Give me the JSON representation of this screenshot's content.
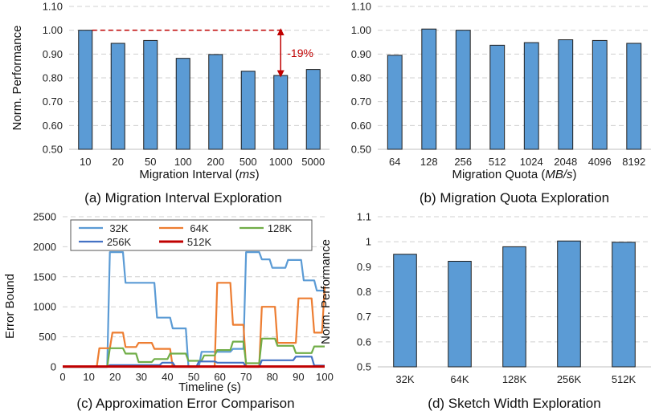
{
  "colors": {
    "bar_fill": "#5b9bd5",
    "bar_stroke": "#1f1f1f",
    "grid": "#d0d0d0",
    "axis": "#333333",
    "annotation": "#c00000"
  },
  "chart_data": [
    {
      "id": "a",
      "type": "bar",
      "caption": "(a) Migration Interval Exploration",
      "xlabel": "Migration Interval (",
      "xlabel_unit": "ms",
      "xlabel_end": ")",
      "ylabel": "Norm. Performance",
      "categories": [
        "10",
        "20",
        "50",
        "100",
        "200",
        "500",
        "1000",
        "5000"
      ],
      "values": [
        1.0,
        0.945,
        0.957,
        0.882,
        0.898,
        0.828,
        0.81,
        0.835
      ],
      "ylim": [
        0.5,
        1.1
      ],
      "yticks": [
        "0.50",
        "0.60",
        "0.70",
        "0.80",
        "0.90",
        "1.00",
        "1.10"
      ],
      "annotation": {
        "text": "-19%",
        "from_value": 1.0,
        "to_value": 0.81
      }
    },
    {
      "id": "b",
      "type": "bar",
      "caption": "(b) Migration Quota Exploration",
      "xlabel": "Migration Quota (",
      "xlabel_unit": "MB/s",
      "xlabel_end": ")",
      "ylabel": "",
      "categories": [
        "64",
        "128",
        "256",
        "512",
        "1024",
        "2048",
        "4096",
        "8192"
      ],
      "values": [
        0.895,
        1.005,
        1.0,
        0.937,
        0.948,
        0.96,
        0.957,
        0.945
      ],
      "ylim": [
        0.5,
        1.1
      ],
      "yticks": [
        "0.50",
        "0.60",
        "0.70",
        "0.80",
        "0.90",
        "1.00",
        "1.10"
      ]
    },
    {
      "id": "c",
      "type": "line",
      "caption": "(c) Approximation Error Comparison",
      "xlabel": "Timeline (s)",
      "ylabel": "Error Bound",
      "xlim": [
        0,
        100
      ],
      "ylim": [
        0,
        2500
      ],
      "xticks": [
        "0",
        "10",
        "20",
        "30",
        "40",
        "50",
        "60",
        "70",
        "80",
        "90",
        "100"
      ],
      "yticks": [
        "0",
        "500",
        "1000",
        "1500",
        "2000",
        "2500"
      ],
      "series": [
        {
          "name": "32K",
          "color": "#5b9bd5",
          "x": [
            0,
            17,
            18,
            23,
            24,
            29,
            30,
            35,
            36,
            41,
            42,
            47,
            48,
            52,
            53,
            58,
            59,
            64,
            65,
            69,
            70,
            75,
            76,
            79,
            80,
            85,
            86,
            91,
            92,
            96,
            97,
            100
          ],
          "y": [
            0,
            0,
            1910,
            1910,
            1400,
            1400,
            1400,
            1400,
            820,
            820,
            640,
            640,
            0,
            0,
            250,
            250,
            250,
            250,
            300,
            300,
            1910,
            1910,
            1790,
            1790,
            1650,
            1650,
            1780,
            1780,
            1440,
            1440,
            1270,
            1270
          ]
        },
        {
          "name": "64K",
          "color": "#ed7d31",
          "x": [
            0,
            13,
            14,
            18,
            19,
            23,
            24,
            28,
            29,
            34,
            35,
            41,
            42,
            53,
            54,
            58,
            59,
            64,
            65,
            69,
            70,
            75,
            76,
            81,
            82,
            89,
            90,
            95,
            96,
            99,
            100
          ],
          "y": [
            0,
            0,
            310,
            310,
            570,
            570,
            330,
            330,
            400,
            400,
            300,
            300,
            0,
            0,
            0,
            0,
            1400,
            1400,
            700,
            700,
            0,
            0,
            1000,
            1000,
            400,
            400,
            1140,
            1140,
            570,
            570,
            1340
          ]
        },
        {
          "name": "128K",
          "color": "#70ad47",
          "x": [
            0,
            17,
            18,
            23,
            24,
            28,
            29,
            34,
            35,
            40,
            41,
            47,
            48,
            53,
            54,
            58,
            59,
            64,
            65,
            69,
            70,
            75,
            76,
            81,
            82,
            88,
            89,
            95,
            96,
            100
          ],
          "y": [
            0,
            0,
            310,
            310,
            220,
            220,
            80,
            80,
            130,
            130,
            220,
            220,
            100,
            100,
            190,
            190,
            280,
            280,
            420,
            420,
            60,
            60,
            470,
            470,
            350,
            350,
            230,
            230,
            340,
            340
          ]
        },
        {
          "name": "256K",
          "color": "#4472c4",
          "x": [
            0,
            17,
            18,
            37,
            38,
            42,
            43,
            51,
            52,
            58,
            59,
            69,
            70,
            75,
            76,
            82,
            83,
            88,
            89,
            95,
            96,
            100
          ],
          "y": [
            0,
            0,
            30,
            30,
            70,
            70,
            0,
            0,
            90,
            90,
            70,
            70,
            0,
            0,
            110,
            110,
            110,
            110,
            170,
            170,
            20,
            20
          ]
        },
        {
          "name": "512K",
          "color": "#c00000",
          "x": [
            0,
            100
          ],
          "y": [
            5,
            5
          ]
        }
      ]
    },
    {
      "id": "d",
      "type": "bar",
      "caption": "(d) Sketch Width Exploration",
      "xlabel": "",
      "ylabel": "Norm. Performance",
      "categories": [
        "32K",
        "64K",
        "128K",
        "256K",
        "512K"
      ],
      "values": [
        0.95,
        0.922,
        0.98,
        1.003,
        0.998
      ],
      "ylim": [
        0.5,
        1.1
      ],
      "yticks": [
        "0.5",
        "0.6",
        "0.7",
        "0.8",
        "0.9",
        "1",
        "1.1"
      ]
    }
  ]
}
